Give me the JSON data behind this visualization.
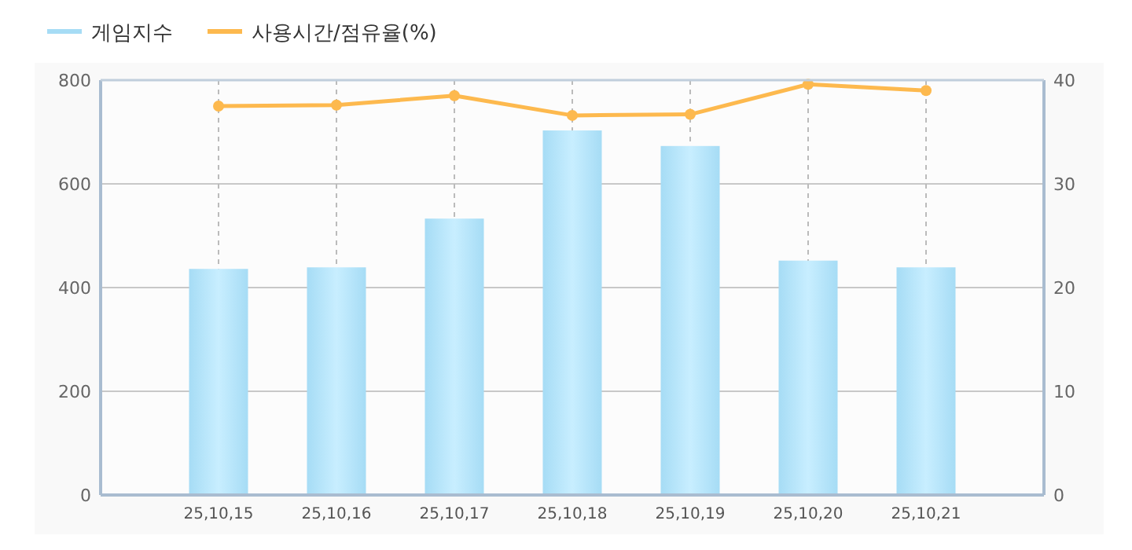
{
  "chart_data": {
    "type": "bar",
    "categories": [
      "25,10,15",
      "25,10,16",
      "25,10,17",
      "25,10,18",
      "25,10,19",
      "25,10,20",
      "25,10,21"
    ],
    "series": [
      {
        "name": "게임지수",
        "color": "#a6dcf5",
        "values": [
          436,
          439,
          533,
          703,
          673,
          452,
          439
        ]
      },
      {
        "name": "사용시간/점유율(%)",
        "type": "line",
        "axis": "y2",
        "color": "#fdb94e",
        "values": [
          37.5,
          37.6,
          38.5,
          36.6,
          36.7,
          39.6,
          39.0
        ]
      }
    ],
    "ylim": [
      0,
      800
    ],
    "yticks": [
      0,
      200,
      400,
      600,
      800
    ],
    "y2lim": [
      0,
      40
    ],
    "y2ticks": [
      0,
      10,
      20,
      30,
      40
    ],
    "grid": true,
    "legend": "top left",
    "marker": "circle"
  }
}
